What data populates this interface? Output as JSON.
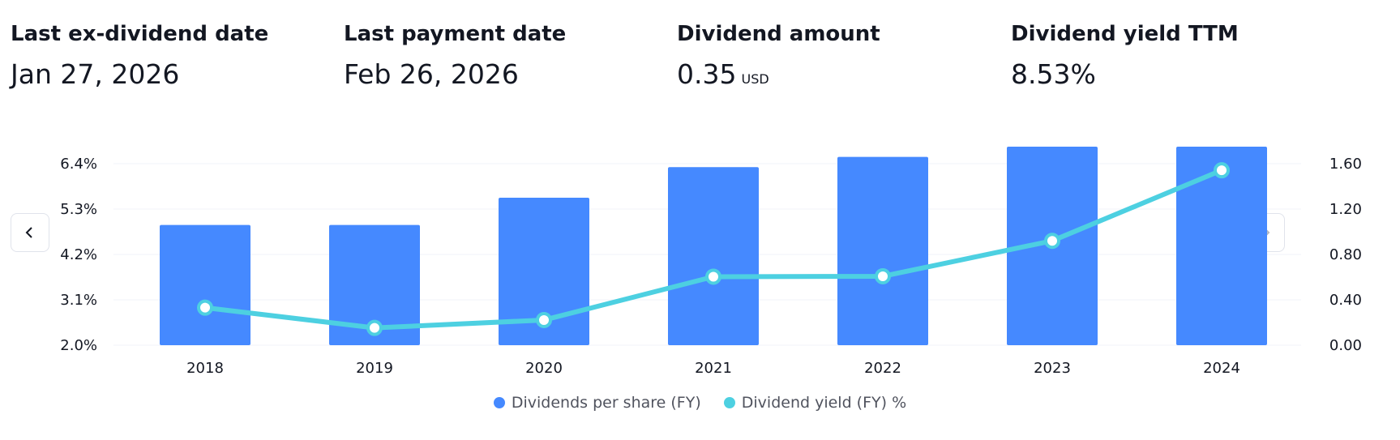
{
  "stats": [
    {
      "label": "Last ex-dividend date",
      "value": "Jan 27, 2026",
      "unit": ""
    },
    {
      "label": "Last payment date",
      "value": "Feb 26, 2026",
      "unit": ""
    },
    {
      "label": "Dividend amount",
      "value": "0.35",
      "unit": "USD"
    },
    {
      "label": "Dividend yield TTM",
      "value": "8.53%",
      "unit": ""
    }
  ],
  "nav": {
    "prev_icon": "chevron-left-icon",
    "next_icon": "chevron-right-icon"
  },
  "colors": {
    "bar": "#4589ff",
    "line": "#4dd0e1",
    "grid": "#f0f3fa",
    "text": "#131722"
  },
  "chart_data": {
    "type": "bar",
    "categories": [
      "2018",
      "2019",
      "2020",
      "2021",
      "2022",
      "2023",
      "2024"
    ],
    "series": [
      {
        "name": "Dividends per share (FY)",
        "type": "bar",
        "axis": "right",
        "values": [
          1.06,
          1.06,
          1.3,
          1.57,
          1.66,
          1.75,
          1.75
        ]
      },
      {
        "name": "Dividend yield (FY) %",
        "type": "line",
        "axis": "left",
        "values": [
          2.91,
          2.42,
          2.61,
          3.66,
          3.67,
          4.53,
          6.24
        ]
      }
    ],
    "left_axis": {
      "ticks": [
        "6.4%",
        "5.3%",
        "4.2%",
        "3.1%",
        "2.0%"
      ],
      "min": 2.0,
      "max": 6.4
    },
    "right_axis": {
      "ticks": [
        "1.60",
        "1.20",
        "0.80",
        "0.40",
        "0.00"
      ],
      "min": 0,
      "max": 1.6
    },
    "grid": true,
    "legend": "bottom-center"
  }
}
